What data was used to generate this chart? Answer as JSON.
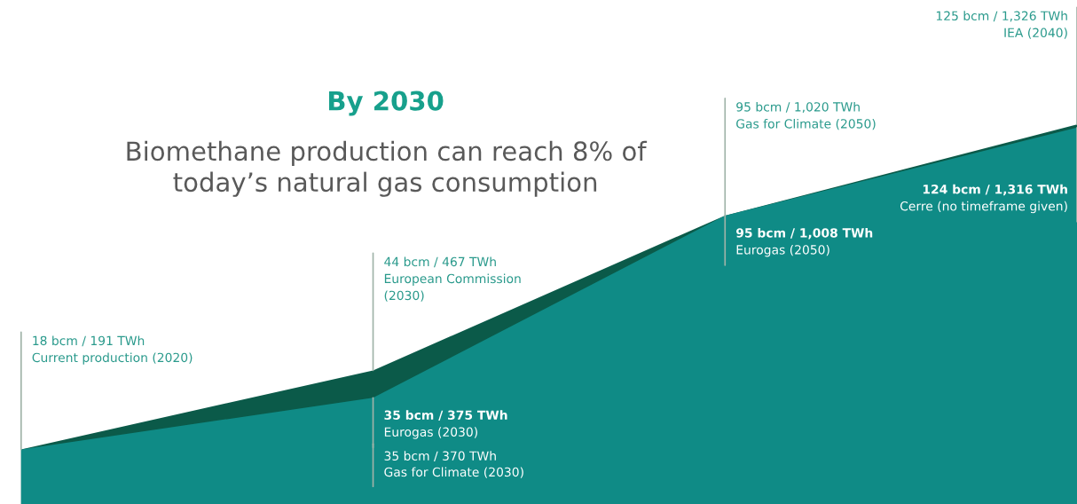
{
  "chart_data": {
    "type": "area",
    "title": "By 2030",
    "subtitle": "Biomethane production can reach 8% of\ntoday’s natural gas consumption",
    "categories": [
      null,
      null,
      null,
      null
    ],
    "ylim": [
      0,
      166
    ],
    "tick_labels": false,
    "series": [
      {
        "color": "#0f8b86",
        "values": [
          18,
          35,
          95,
          124
        ],
        "value_labels": [
          null,
          "35 bcm / 375 TWh\nEurogas (2030)",
          "95 bcm / 1,008 TWh\nEurogas (2050)",
          "124 bcm / 1,316 TWh\nCerre (no timeframe given)"
        ]
      },
      {
        "color": "#0b5a49",
        "values": [
          18,
          44,
          95,
          125
        ],
        "value_labels": [
          "18 bcm / 191 TWh\nCurrent production (2020)",
          "44 bcm / 467 TWh\nEuropean Commission\n(2030)",
          "95 bcm / 1,020 TWh\nGas for Climate (2050)",
          "125 bcm / 1,326 TWh\nIEA (2040)"
        ]
      }
    ],
    "annotations": [
      "35 bcm / 370 TWh\nGas for Climate (2030)"
    ]
  }
}
